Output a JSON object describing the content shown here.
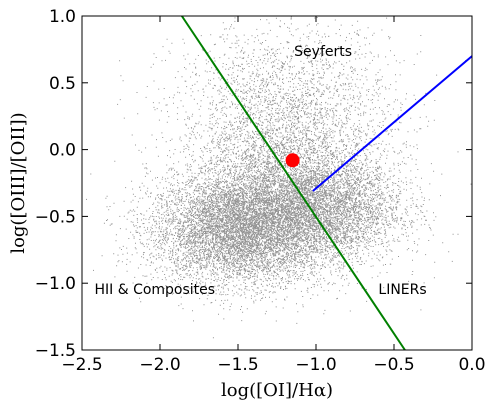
{
  "chart_data": {
    "type": "scatter",
    "title": "",
    "xlabel": "log([OI]/Hα)",
    "ylabel": "log([OIII]/[OII])",
    "xlim": [
      -2.5,
      0.0
    ],
    "ylim": [
      -1.5,
      1.0
    ],
    "xticks": [
      -2.5,
      -2.0,
      -1.5,
      -1.0,
      -0.5,
      0.0
    ],
    "xtick_labels": [
      "−2.5",
      "−2.0",
      "−1.5",
      "−1.0",
      "−0.5",
      "0.0"
    ],
    "yticks": [
      -1.5,
      -1.0,
      -0.5,
      0.0,
      0.5,
      1.0
    ],
    "ytick_labels": [
      "−1.5",
      "−1.0",
      "−0.5",
      "0.0",
      "0.5",
      "1.0"
    ],
    "grid": false,
    "legend": "none",
    "density_clouds": [
      {
        "center": [
          -1.5,
          -0.6
        ],
        "spread": [
          0.28,
          0.2
        ],
        "weight": 0.55
      },
      {
        "center": [
          -1.15,
          -0.35
        ],
        "spread": [
          0.32,
          0.28
        ],
        "weight": 0.2
      },
      {
        "center": [
          -0.95,
          -0.45
        ],
        "spread": [
          0.25,
          0.18
        ],
        "weight": 0.12
      },
      {
        "center": [
          -1.2,
          0.25
        ],
        "spread": [
          0.35,
          0.35
        ],
        "weight": 0.13
      }
    ],
    "lines": [
      {
        "color": "#008000",
        "points": [
          [
            -1.86,
            1.0
          ],
          [
            -0.43,
            -1.5
          ]
        ]
      },
      {
        "color": "#0000ff",
        "points": [
          [
            -1.02,
            -0.31
          ],
          [
            0.0,
            0.7
          ]
        ]
      }
    ],
    "highlight_point": {
      "x": -1.15,
      "y": -0.08,
      "color": "#ff0000"
    },
    "annotations": [
      {
        "text": "Seyferts",
        "x": -1.14,
        "y": 0.7
      },
      {
        "text": "HII & Composites",
        "x": -2.42,
        "y": -1.08
      },
      {
        "text": "LINERs",
        "x": -0.6,
        "y": -1.08
      }
    ],
    "colors": {
      "points": "#3a3a3a",
      "axes": "#000000"
    }
  }
}
